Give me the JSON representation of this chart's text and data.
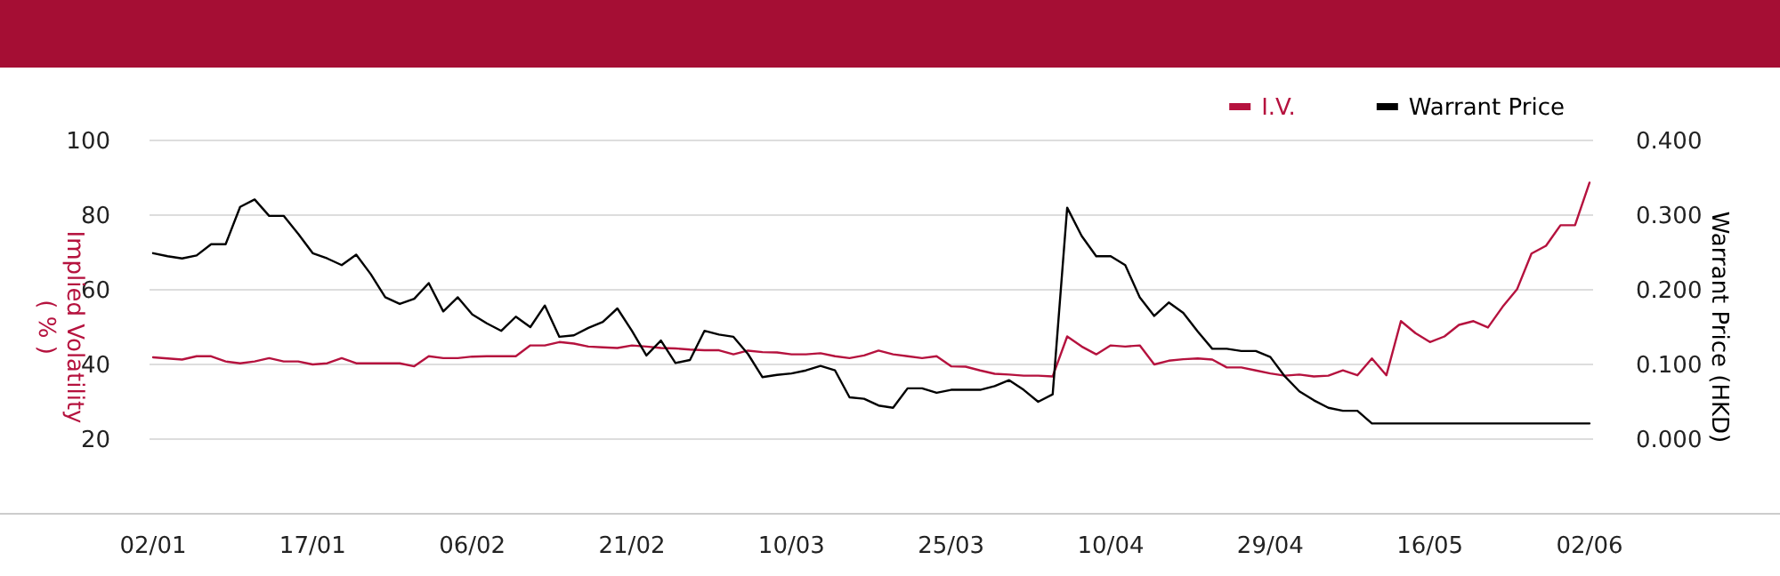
{
  "chart_data": {
    "type": "line",
    "categories": [
      "02/01",
      null,
      null,
      null,
      null,
      null,
      null,
      null,
      null,
      null,
      null,
      "17/01",
      null,
      null,
      null,
      null,
      null,
      null,
      null,
      null,
      null,
      null,
      "06/02",
      null,
      null,
      null,
      null,
      null,
      null,
      null,
      null,
      null,
      null,
      "21/02",
      null,
      null,
      null,
      null,
      null,
      null,
      null,
      null,
      null,
      null,
      "10/03",
      null,
      null,
      null,
      null,
      null,
      null,
      null,
      null,
      null,
      null,
      "25/03",
      null,
      null,
      null,
      null,
      null,
      null,
      null,
      null,
      null,
      null,
      "10/04",
      null,
      null,
      null,
      null,
      null,
      null,
      null,
      null,
      null,
      null,
      "29/04",
      null,
      null,
      null,
      null,
      null,
      null,
      null,
      null,
      null,
      null,
      "16/05",
      null,
      null,
      null,
      null,
      null,
      null,
      null,
      null,
      null,
      null,
      "02/06"
    ],
    "ylabel": "Implied Volatility\n( % )",
    "y2label": "Warrant Price (HKD)",
    "ylim": [
      0,
      100
    ],
    "yticks": [
      20,
      40,
      60,
      80,
      100
    ],
    "y2lim": [
      -0.1,
      0.4
    ],
    "y2ticks": [
      {
        "value": 0,
        "label": "0.000"
      },
      {
        "value": 0.1,
        "label": "0.100"
      },
      {
        "value": 0.2,
        "label": "0.200"
      },
      {
        "value": 0.3,
        "label": "0.300"
      },
      {
        "value": 0.4,
        "label": "0.400"
      }
    ],
    "grid": "y",
    "legend": "top right",
    "series": [
      {
        "name": "I.V.",
        "color": "#b5123e",
        "values": [
          41.9,
          41.6,
          41.3,
          42.2,
          42.2,
          40.8,
          40.3,
          40.8,
          41.7,
          40.8,
          40.8,
          40.0,
          40.3,
          41.7,
          40.3,
          40.3,
          40.3,
          40.3,
          39.5,
          42.2,
          41.7,
          41.7,
          42.1,
          42.2,
          42.2,
          42.2,
          45.1,
          45.1,
          46.0,
          45.6,
          44.8,
          44.6,
          44.4,
          45.1,
          44.8,
          44.4,
          44.3,
          44.0,
          43.8,
          43.8,
          42.7,
          43.7,
          43.3,
          43.2,
          42.7,
          42.7,
          43.0,
          42.2,
          41.7,
          42.4,
          43.7,
          42.7,
          42.2,
          41.7,
          42.2,
          39.5,
          39.4,
          38.4,
          37.5,
          37.3,
          37.0,
          37.0,
          36.8,
          47.5,
          44.8,
          42.7,
          45.1,
          44.8,
          45.1,
          40.0,
          41.0,
          41.4,
          41.6,
          41.3,
          39.2,
          39.2,
          38.4,
          37.6,
          37.0,
          37.3,
          36.8,
          37.0,
          38.4,
          37.1,
          41.6,
          37.1,
          51.6,
          48.4,
          46.0,
          47.5,
          50.6,
          51.6,
          49.9,
          55.4,
          60.1,
          69.7,
          71.8,
          77.3,
          77.3,
          88.7
        ]
      },
      {
        "name": "Warrant Price",
        "color": "#000000",
        "axis": "y2",
        "values": [
          0.249,
          0.245,
          0.242,
          0.246,
          0.261,
          0.261,
          0.311,
          0.321,
          0.299,
          0.299,
          0.275,
          0.249,
          0.242,
          0.233,
          0.247,
          0.221,
          0.19,
          0.181,
          0.188,
          0.209,
          0.171,
          0.19,
          0.167,
          0.155,
          0.145,
          0.164,
          0.15,
          0.179,
          0.137,
          0.139,
          0.149,
          0.157,
          0.175,
          0.145,
          0.112,
          0.132,
          0.102,
          0.106,
          0.145,
          0.14,
          0.137,
          0.114,
          0.083,
          0.086,
          0.088,
          0.092,
          0.098,
          0.092,
          0.056,
          0.054,
          0.045,
          0.042,
          0.068,
          0.068,
          0.062,
          0.066,
          0.066,
          0.066,
          0.071,
          0.079,
          0.066,
          0.05,
          0.06,
          0.31,
          0.272,
          0.245,
          0.245,
          0.233,
          0.19,
          0.165,
          0.183,
          0.169,
          0.144,
          0.121,
          0.121,
          0.118,
          0.118,
          0.11,
          0.084,
          0.064,
          0.052,
          0.042,
          0.038,
          0.038,
          0.021,
          0.021,
          0.021,
          0.021,
          0.021,
          0.021,
          0.021,
          0.021,
          0.021,
          0.021,
          0.021,
          0.021,
          0.021,
          0.021,
          0.021,
          0.021
        ]
      }
    ]
  }
}
